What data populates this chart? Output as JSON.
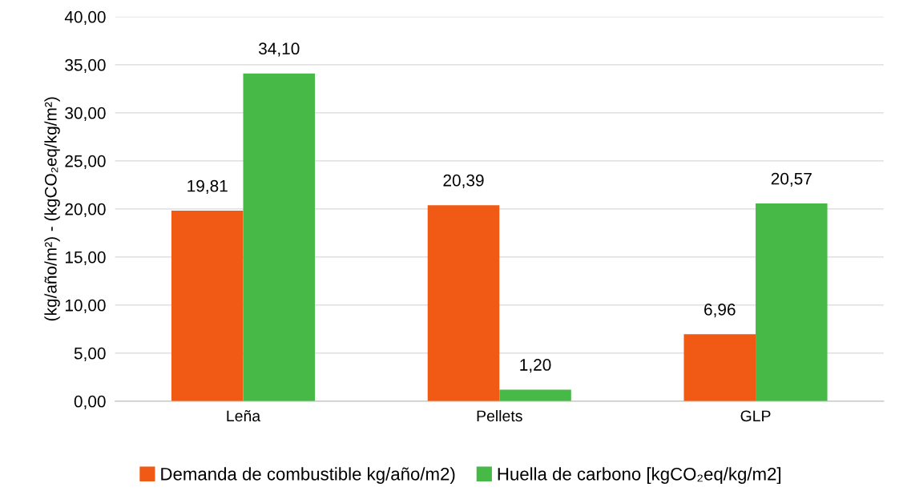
{
  "chart_data": {
    "type": "bar",
    "ylabel": "(kg/año/m²) - (kgCO₂eq/kg/m²)",
    "categories": [
      "Leña",
      "Pellets",
      "GLP"
    ],
    "series": [
      {
        "name": "Demanda de combustible kg/año/m2)",
        "color": "#f05a14",
        "values": [
          19.81,
          20.39,
          6.96
        ],
        "value_labels": [
          "19,81",
          "20,39",
          "6,96"
        ]
      },
      {
        "name": "Huella de carbono [kgCO₂eq/kg/m2]",
        "color": "#46b946",
        "values": [
          34.1,
          1.2,
          20.57
        ],
        "value_labels": [
          "34,10",
          "1,20",
          "20,57"
        ]
      }
    ],
    "ylim": [
      0,
      40
    ],
    "yticks": [
      {
        "value": 0,
        "label": "0,00"
      },
      {
        "value": 5,
        "label": "5,00"
      },
      {
        "value": 10,
        "label": "10,00"
      },
      {
        "value": 15,
        "label": "15,00"
      },
      {
        "value": 20,
        "label": "20,00"
      },
      {
        "value": 25,
        "label": "25,00"
      },
      {
        "value": 30,
        "label": "30,00"
      },
      {
        "value": 35,
        "label": "35,00"
      },
      {
        "value": 40,
        "label": "40,00"
      }
    ],
    "grid": "y",
    "legend": "bottom"
  }
}
